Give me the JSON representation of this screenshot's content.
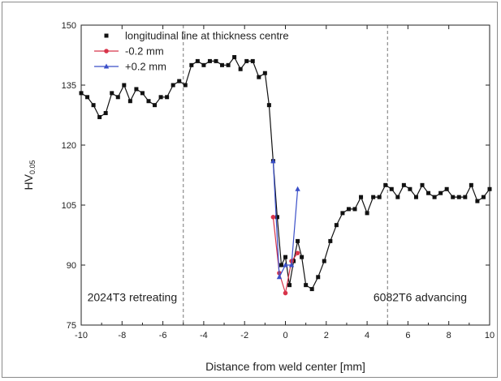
{
  "chart_data": {
    "type": "line",
    "xlabel": "Distance from weld center [mm]",
    "ylabel_main": "HV",
    "ylabel_sub": "0.05",
    "xlim": [
      -10,
      10
    ],
    "ylim": [
      75,
      150
    ],
    "xticks": [
      -10,
      -8,
      -6,
      -4,
      -2,
      0,
      2,
      4,
      6,
      8,
      10
    ],
    "yticks": [
      75,
      90,
      105,
      120,
      135,
      150
    ],
    "grid": false,
    "legend_position": "top-left",
    "reference_lines": [
      -5,
      5
    ],
    "annotations": [
      {
        "text": "2024T3 retreating",
        "x": -7.5,
        "y": 82
      },
      {
        "text": "6082T6 advancing",
        "x": 6.6,
        "y": 82
      }
    ],
    "series": [
      {
        "name": "longitudinal line at thickness centre",
        "color": "#111111",
        "marker": "square",
        "x": [
          -10,
          -9.7,
          -9.4,
          -9.1,
          -8.8,
          -8.5,
          -8.2,
          -7.9,
          -7.6,
          -7.3,
          -7.0,
          -6.7,
          -6.4,
          -6.1,
          -5.8,
          -5.5,
          -5.2,
          -4.9,
          -4.6,
          -4.3,
          -4.0,
          -3.7,
          -3.4,
          -3.1,
          -2.8,
          -2.5,
          -2.2,
          -1.9,
          -1.6,
          -1.3,
          -1.0,
          -0.8,
          -0.6,
          -0.4,
          -0.2,
          0.0,
          0.2,
          0.4,
          0.6,
          0.8,
          1.0,
          1.3,
          1.6,
          1.9,
          2.2,
          2.5,
          2.8,
          3.1,
          3.4,
          3.7,
          4.0,
          4.3,
          4.6,
          4.9,
          5.2,
          5.5,
          5.8,
          6.1,
          6.4,
          6.7,
          7.0,
          7.3,
          7.6,
          7.9,
          8.2,
          8.5,
          8.8,
          9.1,
          9.4,
          9.7,
          10.0
        ],
        "y": [
          133,
          132,
          130,
          127,
          128,
          133,
          132,
          135,
          131,
          134,
          133,
          131,
          130,
          132,
          132,
          135,
          136,
          135,
          140,
          141,
          140,
          141,
          141,
          140,
          140,
          142,
          139,
          141,
          141,
          137,
          138,
          130,
          116,
          102,
          90,
          92,
          85,
          91,
          96,
          92,
          85,
          84,
          87,
          91,
          96,
          100,
          103,
          104,
          104,
          107,
          103,
          107,
          107,
          110,
          109,
          107,
          110,
          109,
          107,
          110,
          108,
          107,
          108,
          109,
          107,
          107,
          107,
          110,
          106,
          107,
          109
        ]
      },
      {
        "name": "-0.2 mm",
        "color": "#d8344a",
        "marker": "circle",
        "x": [
          -0.6,
          -0.3,
          0.0,
          0.3,
          0.6
        ],
        "y": [
          102,
          88,
          83,
          91,
          93
        ]
      },
      {
        "name": "+0.2 mm",
        "color": "#3a4fc8",
        "marker": "triangle",
        "x": [
          -0.6,
          -0.3,
          0.0,
          0.3,
          0.6
        ],
        "y": [
          116,
          87,
          90,
          90,
          109
        ]
      }
    ]
  }
}
